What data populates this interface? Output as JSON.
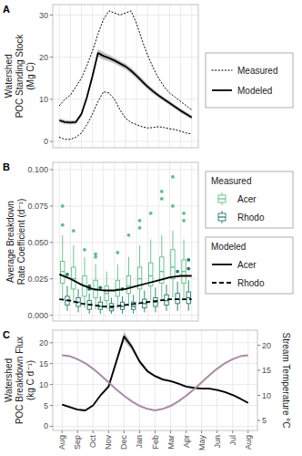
{
  "chart_data": [
    {
      "type": "line",
      "title": "A",
      "y_label": "Watershed\nPOC Standing Stock\n(Mg C)",
      "x": [
        0,
        0.5,
        1,
        1.5,
        2,
        2.5,
        3,
        3.5,
        4,
        4.5,
        5,
        5.5,
        6,
        6.5,
        7,
        7.5,
        8,
        8.5,
        9,
        9.5,
        10,
        10.5,
        11,
        11.5,
        12
      ],
      "xlim": [
        -0.6,
        12.6
      ],
      "xticks": [
        0,
        1,
        2,
        3,
        4,
        5,
        6,
        7,
        8,
        9,
        10,
        11,
        12
      ],
      "ylim": [
        -1.5,
        32.5
      ],
      "yticks": [
        0,
        10,
        20,
        30
      ],
      "grid": true,
      "legend": "right",
      "tick_labels": "y",
      "series": [
        {
          "name": "Measured",
          "color": "#000000",
          "line_style": "dotted",
          "values": [
            8.5,
            10,
            11,
            13,
            15,
            18,
            21.5,
            25.5,
            29,
            31,
            30.5,
            30,
            30.5,
            31,
            28,
            24,
            20.5,
            17.5,
            15,
            13,
            11.5,
            10.5,
            9.5,
            8.5,
            7.5
          ]
        },
        {
          "name": "Measured",
          "color": "#000000",
          "line_style": "dotted",
          "values": [
            1,
            0.5,
            0.5,
            1,
            2,
            4,
            6.5,
            9.5,
            11.8,
            11.5,
            10,
            7.5,
            5.5,
            4.5,
            4,
            3.5,
            3.2,
            3.3,
            3.5,
            3.3,
            3,
            2.8,
            2.4,
            2,
            1.8
          ]
        },
        {
          "name": "Modeled",
          "color": "#000000",
          "line_style": "solid",
          "values": [
            5.0,
            4.6,
            4.5,
            4.6,
            6.5,
            10.5,
            15.5,
            21.0,
            20.3,
            19.8,
            19.2,
            18.5,
            17.8,
            16.8,
            15.6,
            14.3,
            13.0,
            11.9,
            10.9,
            10.0,
            9.1,
            8.2,
            7.3,
            6.5,
            5.7
          ],
          "upper": [
            5.5,
            5.1,
            5.0,
            5.1,
            7.0,
            11.1,
            16.2,
            21.9,
            21.2,
            20.6,
            19.9,
            19.2,
            18.5,
            17.5,
            16.3,
            15.0,
            13.6,
            12.5,
            11.4,
            10.5,
            9.6,
            8.7,
            7.8,
            7.0,
            6.2
          ],
          "lower": [
            4.5,
            4.1,
            4.0,
            4.1,
            6.0,
            9.9,
            14.8,
            20.1,
            19.4,
            19.0,
            18.5,
            17.8,
            17.1,
            16.1,
            14.9,
            13.6,
            12.4,
            11.3,
            10.4,
            9.5,
            8.6,
            7.7,
            6.8,
            6.0,
            5.2
          ]
        }
      ]
    },
    {
      "type": "box",
      "title": "B",
      "y_label": "Average Breakdown\nRate Coefficient (d⁻¹)",
      "xlim": [
        -0.6,
        12.6
      ],
      "xticks": [
        0,
        1,
        2,
        3,
        4,
        5,
        6,
        7,
        8,
        9,
        10,
        11,
        12
      ],
      "ylim": [
        -0.004,
        0.105
      ],
      "yticks": [
        {
          "value": 0,
          "label": "0.000"
        },
        {
          "value": 0.025,
          "label": "0.025"
        },
        {
          "value": 0.05,
          "label": "0.050"
        },
        {
          "value": 0.075,
          "label": "0.075"
        },
        {
          "value": 0.1,
          "label": "0.100"
        }
      ],
      "grid": true,
      "legend": "right",
      "tick_labels": "y",
      "series": [
        {
          "name": "Acer",
          "group": "Measured",
          "type": "box",
          "color": "#5cbf82",
          "x": [
            0.5,
            1.5,
            2.5,
            3.5,
            4.5,
            5.5,
            6.5,
            7.5,
            8.5,
            9.5,
            10.5,
            11.5
          ],
          "values": [
            0.03,
            0.025,
            0.02,
            0.017,
            0.015,
            0.018,
            0.02,
            0.025,
            0.027,
            0.03,
            0.033,
            0.03
          ],
          "q1": [
            0.022,
            0.018,
            0.013,
            0.012,
            0.01,
            0.013,
            0.015,
            0.018,
            0.02,
            0.022,
            0.025,
            0.022
          ],
          "q3": [
            0.037,
            0.033,
            0.027,
            0.024,
            0.02,
            0.024,
            0.027,
            0.033,
            0.036,
            0.04,
            0.045,
            0.038
          ],
          "whisker_low": [
            0.01,
            0.008,
            0.005,
            0.004,
            0.004,
            0.005,
            0.006,
            0.008,
            0.01,
            0.01,
            0.012,
            0.01
          ],
          "whisker_high": [
            0.055,
            0.048,
            0.04,
            0.035,
            0.03,
            0.035,
            0.04,
            0.048,
            0.052,
            0.055,
            0.058,
            0.052
          ],
          "outliers": [
            [
              0.075,
              0.062
            ],
            [
              0.058
            ],
            [
              0.045
            ],
            [
              0.042,
              0.04
            ],
            [],
            [
              0.043
            ],
            [
              0.055
            ],
            [
              0.065,
              0.06
            ],
            [
              0.07
            ],
            [
              0.085,
              0.08
            ],
            [
              0.095,
              0.075
            ],
            [
              0.065,
              0.07
            ]
          ]
        },
        {
          "name": "Rhodo",
          "group": "Measured",
          "type": "box",
          "color": "#1f7a6a",
          "x": [
            0.5,
            1.5,
            2.5,
            3.5,
            4.5,
            5.5,
            6.5,
            7.5,
            8.5,
            9.5,
            10.5,
            11.5
          ],
          "values": [
            0.01,
            0.009,
            0.007,
            0.006,
            0.005,
            0.006,
            0.006,
            0.008,
            0.009,
            0.01,
            0.011,
            0.012
          ],
          "q1": [
            0.007,
            0.006,
            0.004,
            0.004,
            0.003,
            0.004,
            0.004,
            0.005,
            0.006,
            0.007,
            0.008,
            0.008
          ],
          "q3": [
            0.013,
            0.012,
            0.01,
            0.009,
            0.008,
            0.009,
            0.009,
            0.011,
            0.012,
            0.014,
            0.015,
            0.016
          ],
          "whisker_low": [
            0.003,
            0.002,
            0.001,
            0.001,
            0.001,
            0.001,
            0.001,
            0.002,
            0.002,
            0.003,
            0.003,
            0.003
          ],
          "whisker_high": [
            0.02,
            0.018,
            0.015,
            0.013,
            0.012,
            0.013,
            0.014,
            0.017,
            0.019,
            0.021,
            0.023,
            0.024
          ],
          "outliers": [
            [
              0.028
            ],
            [],
            [
              0.02,
              0.018
            ],
            [
              0.019
            ],
            [],
            [
              0.018
            ],
            [],
            [],
            [],
            [],
            [
              0.03
            ],
            [
              0.038,
              0.032
            ]
          ]
        },
        {
          "name": "Acer",
          "group": "Modeled",
          "type": "line",
          "color": "#000000",
          "line_style": "solid",
          "x": [
            0,
            1,
            2,
            3,
            4,
            5,
            6,
            7,
            8,
            9,
            10,
            11,
            12
          ],
          "values": [
            0.028,
            0.025,
            0.021,
            0.018,
            0.017,
            0.017,
            0.018,
            0.02,
            0.022,
            0.024,
            0.026,
            0.027,
            0.027
          ]
        },
        {
          "name": "Rhodo",
          "group": "Modeled",
          "type": "line",
          "color": "#000000",
          "line_style": "dashed",
          "x": [
            0,
            1,
            2,
            3,
            4,
            5,
            6,
            7,
            8,
            9,
            10,
            11,
            12
          ],
          "values": [
            0.011,
            0.01,
            0.008,
            0.007,
            0.006,
            0.006,
            0.007,
            0.008,
            0.009,
            0.01,
            0.011,
            0.011,
            0.011
          ]
        }
      ]
    },
    {
      "type": "line",
      "title": "C",
      "y_label": "Watershed\nPOC Breakdown Flux\n(kg C d⁻¹)",
      "y2_label": "Stream Temperature °C",
      "x": [
        0,
        0.5,
        1,
        1.5,
        2,
        2.5,
        3,
        3.5,
        4,
        4.5,
        5,
        5.5,
        6,
        6.5,
        7,
        7.5,
        8,
        8.5,
        9,
        9.5,
        10,
        10.5,
        11,
        11.5,
        12
      ],
      "xlim": [
        -0.6,
        12.6
      ],
      "xticks": [
        {
          "value": 0,
          "label": "Aug"
        },
        {
          "value": 1,
          "label": "Sep"
        },
        {
          "value": 2,
          "label": "Oct"
        },
        {
          "value": 3,
          "label": "Nov"
        },
        {
          "value": 4,
          "label": "Dec"
        },
        {
          "value": 5,
          "label": "Jan"
        },
        {
          "value": 6,
          "label": "Feb"
        },
        {
          "value": 7,
          "label": "Mar"
        },
        {
          "value": 8,
          "label": "Apr"
        },
        {
          "value": 9,
          "label": "May"
        },
        {
          "value": 10,
          "label": "Jun"
        },
        {
          "value": 11,
          "label": "Jul"
        },
        {
          "value": 12,
          "label": "Aug"
        }
      ],
      "ylim": [
        -1,
        23
      ],
      "yticks": [
        0,
        5,
        10,
        15,
        20
      ],
      "y2lim": [
        3,
        23
      ],
      "y2ticks": [
        5,
        10,
        15,
        20
      ],
      "grid": true,
      "series": [
        {
          "color": "#000000",
          "line_style": "solid",
          "values": [
            5.2,
            4.6,
            4.0,
            3.8,
            5.0,
            7.5,
            9.5,
            15.5,
            21.5,
            19.0,
            15.5,
            13.2,
            12.0,
            11.2,
            10.8,
            10.2,
            9.5,
            9.2,
            9.0,
            9.0,
            8.7,
            8.2,
            7.5,
            6.6,
            5.6
          ],
          "upper": [
            5.4,
            4.8,
            4.2,
            4.0,
            5.2,
            7.8,
            9.9,
            16.2,
            22.6,
            19.8,
            16.1,
            13.6,
            12.3,
            11.5,
            11.0,
            10.4,
            9.7,
            9.4,
            9.2,
            9.2,
            8.9,
            8.4,
            7.7,
            6.8,
            5.8
          ],
          "lower": [
            5.0,
            4.4,
            3.8,
            3.6,
            4.8,
            7.2,
            9.1,
            14.8,
            20.4,
            18.2,
            14.9,
            12.8,
            11.7,
            10.9,
            10.6,
            10.0,
            9.3,
            9.0,
            8.8,
            8.8,
            8.5,
            8.0,
            7.3,
            6.4,
            5.4
          ]
        },
        {
          "color": "#a98aa6",
          "line_style": "solid",
          "axis": "y2",
          "values": [
            18,
            17.8,
            17.2,
            16.4,
            15.3,
            14,
            12.6,
            11.2,
            9.9,
            8.8,
            7.9,
            7.3,
            7.0,
            7.3,
            7.9,
            8.8,
            9.9,
            11.2,
            12.6,
            14,
            15.3,
            16.4,
            17.2,
            17.8,
            18
          ]
        }
      ]
    }
  ]
}
